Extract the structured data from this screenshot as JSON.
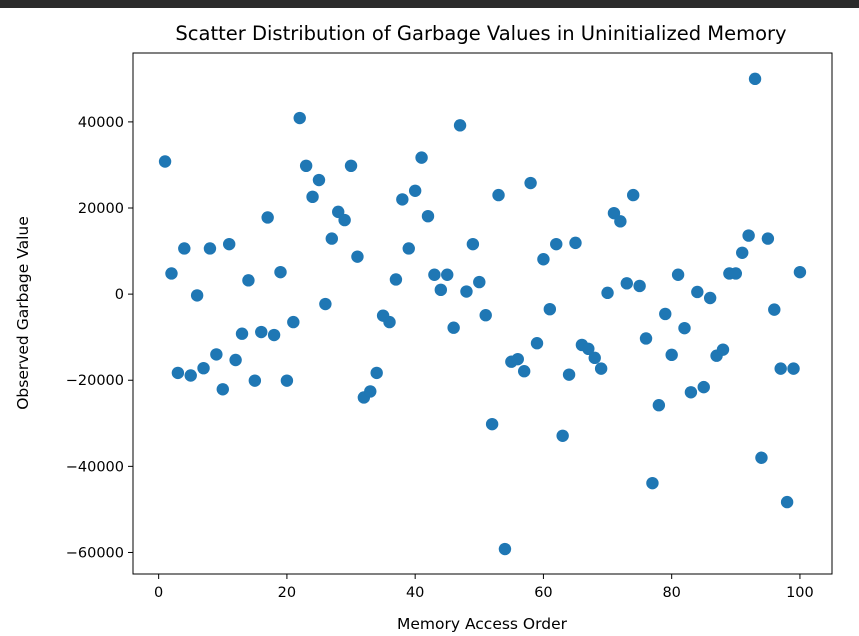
{
  "chart_data": {
    "type": "scatter",
    "title": "Scatter Distribution of Garbage Values in Uninitialized Memory",
    "xlabel": "Memory Access Order",
    "ylabel": "Observed Garbage Value",
    "xlim": [
      -4,
      105
    ],
    "ylim": [
      -65000,
      56000
    ],
    "xticks": [
      0,
      20,
      40,
      60,
      80,
      100
    ],
    "xtick_labels": [
      "0",
      "20",
      "40",
      "60",
      "80",
      "100"
    ],
    "yticks": [
      -60000,
      -40000,
      -20000,
      0,
      20000,
      40000
    ],
    "ytick_labels": [
      "−60000",
      "−40000",
      "−20000",
      "0",
      "20000",
      "40000"
    ],
    "grid": false,
    "marker_color": "#1f77b4",
    "series": [
      {
        "x": [
          1,
          2,
          3,
          4,
          5,
          6,
          7,
          8,
          9,
          10,
          11,
          12,
          13,
          14,
          15,
          16,
          17,
          18,
          19,
          20,
          21,
          22,
          23,
          24,
          25,
          26,
          27,
          28,
          29,
          30,
          31,
          32,
          33,
          34,
          35,
          36,
          37,
          38,
          39,
          40,
          41,
          42,
          43,
          44,
          45,
          46,
          47,
          48,
          49,
          50,
          51,
          52,
          53,
          54,
          55,
          56,
          57,
          58,
          59,
          60,
          61,
          62,
          63,
          64,
          65,
          66,
          67,
          68,
          69,
          70,
          71,
          72,
          73,
          74,
          75,
          76,
          77,
          78,
          79,
          80,
          81,
          82,
          83,
          84,
          85,
          86,
          87,
          88,
          89,
          90,
          91,
          92,
          93,
          94,
          95,
          96,
          97,
          98,
          99,
          100
        ],
        "y": [
          30800,
          4800,
          -18300,
          10600,
          -18900,
          -300,
          -17200,
          10600,
          -14000,
          -22100,
          11600,
          -15300,
          -9200,
          3200,
          -20100,
          -8800,
          17800,
          -9500,
          5100,
          -20100,
          -6500,
          40900,
          29800,
          22600,
          26500,
          -2300,
          12900,
          19100,
          17200,
          29800,
          8700,
          -24000,
          -22600,
          -18300,
          -5000,
          -6500,
          3400,
          22000,
          10600,
          24000,
          31700,
          18100,
          4500,
          1000,
          4500,
          -7800,
          39200,
          600,
          11600,
          2800,
          -4900,
          -30200,
          23000,
          -59200,
          -15700,
          -15100,
          -17900,
          25800,
          -11400,
          8100,
          -3500,
          11600,
          -32900,
          -18700,
          11900,
          -11800,
          -12700,
          -14800,
          -17300,
          300,
          18800,
          16900,
          2500,
          23000,
          1900,
          -10300,
          -43900,
          -25800,
          -4600,
          -14100,
          4500,
          -7900,
          -22800,
          500,
          -21600,
          -900,
          -14300,
          -12900,
          4800,
          4800,
          9600,
          13600,
          50000,
          -38000,
          12900,
          -3600,
          -17300,
          -48300,
          -17300,
          5100
        ]
      }
    ]
  }
}
